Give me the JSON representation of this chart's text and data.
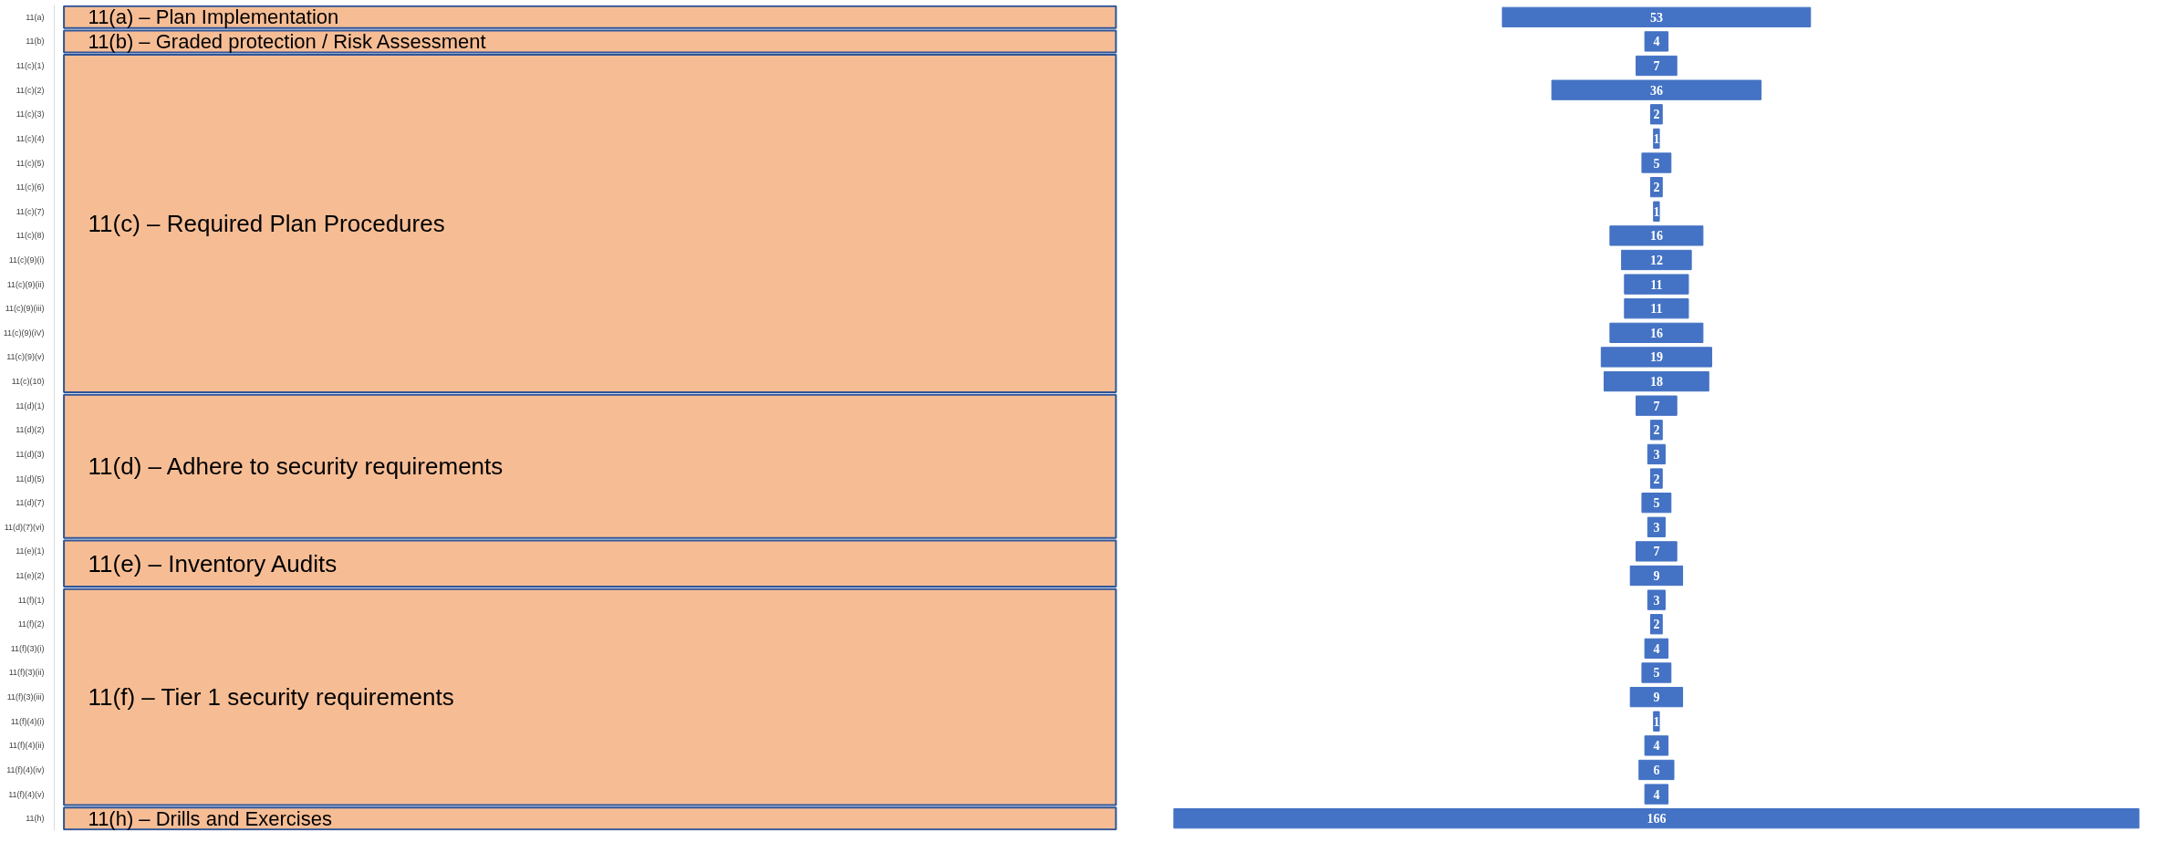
{
  "chart_data": {
    "type": "other",
    "categories": [
      "11(a)",
      "11(b)",
      "11(c)(1)",
      "11(c)(2)",
      "11(c)(3)",
      "11(c)(4)",
      "11(c)(5)",
      "11(c)(6)",
      "11(c)(7)",
      "11(c)(8)",
      "11(c)(9)(i)",
      "11(c)(9)(ii)",
      "11(c)(9)(iii)",
      "11(c)(9)(iV)",
      "11(c)(9)(v)",
      "11(c)(10)",
      "11(d)(1)",
      "11(d)(2)",
      "11(d)(3)",
      "11(d)(5)",
      "11(d)(7)",
      "11(d)(7)(vi)",
      "11(e)(1)",
      "11(e)(2)",
      "11(f)(1)",
      "11(f)(2)",
      "11(f)(3)(i)",
      "11(f)(3)(ii)",
      "11(f)(3)(iii)",
      "11(f)(4)(i)",
      "11(f)(4)(ii)",
      "11(f)(4)(iv)",
      "11(f)(4)(v)",
      "11(h)"
    ],
    "data_labels": true,
    "annotations": [
      "11(a) – Plan Implementation",
      "11(b) – Graded protection / Risk Assessment",
      "11(c) – Required Plan Procedures",
      "11(d) – Adhere to security requirements",
      "11(e) – Inventory Audits",
      "11(f) – Tier 1 security requirements",
      "11(h) – Drills and Exercises"
    ],
    "series": [
      {
        "color": "#4472c4",
        "values": [
          53,
          null,
          null,
          null,
          null,
          null,
          null,
          null,
          null,
          null,
          null,
          null,
          null,
          null,
          null,
          null,
          null,
          null,
          null,
          null,
          null,
          null,
          null,
          null,
          null,
          null,
          null,
          null,
          null,
          null,
          null,
          null,
          null,
          null
        ]
      },
      {
        "color": "#4472c4",
        "values": [
          null,
          4,
          null,
          null,
          null,
          null,
          null,
          null,
          null,
          null,
          null,
          null,
          null,
          null,
          null,
          null,
          null,
          null,
          null,
          null,
          null,
          null,
          null,
          null,
          null,
          null,
          null,
          null,
          null,
          null,
          null,
          null,
          null,
          null
        ]
      },
      {
        "color": "#4472c4",
        "values": [
          null,
          null,
          7,
          36,
          2,
          1,
          5,
          2,
          1,
          16,
          12,
          11,
          11,
          16,
          19,
          18,
          null,
          null,
          null,
          null,
          null,
          null,
          null,
          null,
          null,
          null,
          null,
          null,
          null,
          null,
          null,
          null,
          null,
          null
        ]
      },
      {
        "color": "#4472c4",
        "values": [
          null,
          null,
          null,
          null,
          null,
          null,
          null,
          null,
          null,
          null,
          null,
          null,
          null,
          null,
          null,
          null,
          7,
          2,
          3,
          2,
          5,
          3,
          null,
          null,
          null,
          null,
          null,
          null,
          null,
          null,
          null,
          null,
          null,
          null
        ]
      },
      {
        "color": "#4472c4",
        "values": [
          null,
          null,
          null,
          null,
          null,
          null,
          null,
          null,
          null,
          null,
          null,
          null,
          null,
          null,
          null,
          null,
          null,
          null,
          null,
          null,
          null,
          null,
          7,
          9,
          null,
          null,
          null,
          null,
          null,
          null,
          null,
          null,
          null,
          null
        ]
      },
      {
        "color": "#4472c4",
        "values": [
          null,
          null,
          null,
          null,
          null,
          null,
          null,
          null,
          null,
          null,
          null,
          null,
          null,
          null,
          null,
          null,
          null,
          null,
          null,
          null,
          null,
          null,
          null,
          null,
          3,
          2,
          4,
          5,
          9,
          1,
          4,
          6,
          4,
          null
        ]
      },
      {
        "color": "#4472c4",
        "values": [
          null,
          null,
          null,
          null,
          null,
          null,
          null,
          null,
          null,
          null,
          null,
          null,
          null,
          null,
          null,
          null,
          null,
          null,
          null,
          null,
          null,
          null,
          null,
          null,
          null,
          null,
          null,
          null,
          null,
          null,
          null,
          null,
          null,
          166
        ]
      }
    ]
  }
}
